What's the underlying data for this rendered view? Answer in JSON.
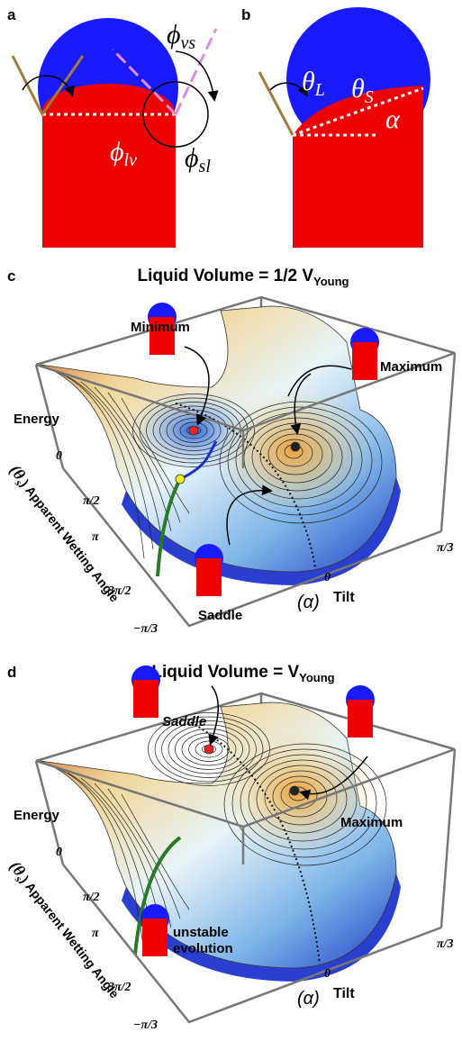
{
  "panels": {
    "a": {
      "label": "a",
      "phi_vs": {
        "symbol": "ϕ",
        "sub": "vs"
      },
      "phi_lv": {
        "symbol": "ϕ",
        "sub": "lv"
      },
      "phi_sl": {
        "symbol": "ϕ",
        "sub": "sl"
      }
    },
    "b": {
      "label": "b",
      "theta_L": {
        "symbol": "θ",
        "sub": "L"
      },
      "theta_S": {
        "symbol": "θ",
        "sub": "S"
      },
      "alpha": "α"
    },
    "c": {
      "label": "c",
      "title": {
        "text": "Liquid Volume = 1/2 V",
        "sub": "Young"
      },
      "minimum": "Minimum",
      "maximum": "Maximum",
      "saddle": "Saddle",
      "z_label": "Energy",
      "y_axis": {
        "symbol": "(θ",
        "sub": "s",
        "label": ") Apparent Wetting Angle",
        "ticks": [
          "0",
          "π/2",
          "π",
          "3π/2"
        ]
      },
      "x_axis": {
        "symbol": "(α)",
        "label": "Tilt",
        "ticks": [
          "π/3",
          "0",
          "−π/3"
        ]
      }
    },
    "d": {
      "label": "d",
      "title": {
        "text": "Liquid Volume = V",
        "sub": "Young"
      },
      "saddle": "Saddle",
      "maximum": "Maximum",
      "note": [
        "unstable",
        "evolution"
      ],
      "z_label": "Energy",
      "y_axis": {
        "symbol": "(θ",
        "sub": "s",
        "label": ") Apparent Wetting Angle",
        "ticks": [
          "0",
          "π/2",
          "π",
          "3π/2"
        ]
      },
      "x_axis": {
        "symbol": "(α)",
        "label": "Tilt",
        "ticks": [
          "π/3",
          "0",
          "−π/3"
        ]
      }
    }
  }
}
